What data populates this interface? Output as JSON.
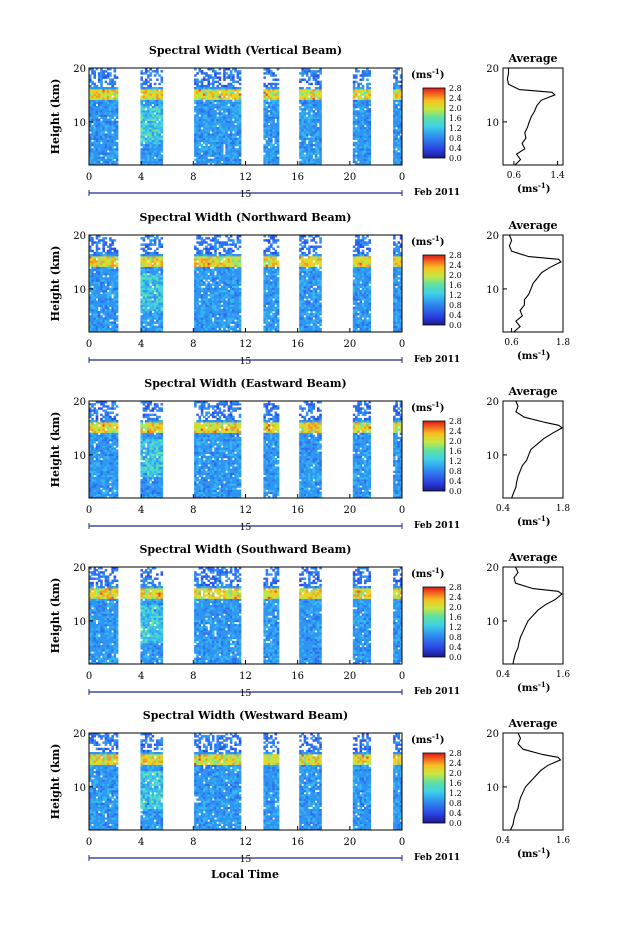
{
  "figure": {
    "xlabel": "Local Time",
    "ylabel": "Height (km)",
    "date_label": "Feb 2011",
    "day_label": "15",
    "unit_label": "(ms",
    "unit_exp": "-1",
    "avg_title": "Average",
    "colorbar_ticks": [
      "0.0",
      "0.4",
      "0.8",
      "1.2",
      "1.6",
      "2.0",
      "2.4",
      "2.8"
    ]
  },
  "chart_data": [
    {
      "type": "heatmap",
      "title": "Spectral Width (Vertical Beam)",
      "x_ticks": [
        "0",
        "4",
        "8",
        "12",
        "16",
        "20",
        "0"
      ],
      "y_ticks": [
        "20",
        "10"
      ],
      "xlim": [
        0,
        24
      ],
      "ylim": [
        2,
        20
      ],
      "colorbar_range": [
        0.0,
        2.8
      ],
      "data_gaps_hours": [
        [
          2.3,
          3.9
        ],
        [
          5.6,
          8.1
        ],
        [
          11.6,
          13.3
        ],
        [
          14.5,
          16.2
        ],
        [
          17.8,
          20.2
        ],
        [
          21.6,
          23.3
        ]
      ],
      "average_profile": {
        "title": "Average",
        "x_ticks": [
          "0.6",
          "1.4"
        ],
        "xlim": [
          0.4,
          1.5
        ],
        "y_ticks": [
          "20",
          "10"
        ],
        "ylim": [
          2,
          20
        ],
        "height_km": [
          2,
          3,
          4,
          5,
          6,
          7,
          8,
          9,
          10,
          11,
          12,
          13,
          14,
          15,
          15.5,
          16,
          17,
          18,
          19,
          20
        ],
        "value": [
          0.62,
          0.72,
          0.65,
          0.8,
          0.75,
          0.82,
          0.8,
          0.85,
          0.88,
          0.92,
          0.98,
          1.02,
          1.1,
          1.35,
          1.3,
          0.7,
          0.5,
          0.48,
          0.5,
          0.5
        ]
      }
    },
    {
      "type": "heatmap",
      "title": "Spectral Width (Northward Beam)",
      "x_ticks": [
        "0",
        "4",
        "8",
        "12",
        "16",
        "20",
        "0"
      ],
      "y_ticks": [
        "20",
        "10"
      ],
      "xlim": [
        0,
        24
      ],
      "ylim": [
        2,
        20
      ],
      "colorbar_range": [
        0.0,
        2.8
      ],
      "average_profile": {
        "title": "Average",
        "x_ticks": [
          "0.6",
          "1.8"
        ],
        "xlim": [
          0.4,
          1.8
        ],
        "y_ticks": [
          "20",
          "10"
        ],
        "ylim": [
          2,
          20
        ],
        "height_km": [
          2,
          3,
          4,
          5,
          6,
          7,
          8,
          9,
          10,
          11,
          12,
          13,
          14,
          15,
          15.5,
          16,
          17,
          18,
          19,
          20
        ],
        "value": [
          0.65,
          0.8,
          0.7,
          0.85,
          0.8,
          0.9,
          0.9,
          1.0,
          1.05,
          1.1,
          1.2,
          1.3,
          1.5,
          1.75,
          1.7,
          1.0,
          0.6,
          0.55,
          0.6,
          0.55
        ]
      }
    },
    {
      "type": "heatmap",
      "title": "Spectral Width (Eastward Beam)",
      "x_ticks": [
        "0",
        "4",
        "8",
        "12",
        "16",
        "20",
        "0"
      ],
      "y_ticks": [
        "20",
        "10"
      ],
      "xlim": [
        0,
        24
      ],
      "ylim": [
        2,
        20
      ],
      "colorbar_range": [
        0.0,
        2.8
      ],
      "average_profile": {
        "title": "Average",
        "x_ticks": [
          "0.4",
          "1.8"
        ],
        "xlim": [
          0.4,
          1.8
        ],
        "y_ticks": [
          "20",
          "10"
        ],
        "ylim": [
          2,
          20
        ],
        "height_km": [
          2,
          3,
          4,
          5,
          6,
          7,
          8,
          9,
          10,
          11,
          12,
          13,
          14,
          15,
          15.5,
          16,
          17,
          18,
          19,
          20
        ],
        "value": [
          0.6,
          0.65,
          0.7,
          0.72,
          0.75,
          0.8,
          0.85,
          0.95,
          1.0,
          1.05,
          1.2,
          1.35,
          1.55,
          1.78,
          1.7,
          1.4,
          0.9,
          0.7,
          0.75,
          0.7
        ]
      }
    },
    {
      "type": "heatmap",
      "title": "Spectral Width (Southward Beam)",
      "x_ticks": [
        "0",
        "4",
        "8",
        "12",
        "16",
        "20",
        "0"
      ],
      "y_ticks": [
        "20",
        "10"
      ],
      "xlim": [
        0,
        24
      ],
      "ylim": [
        2,
        20
      ],
      "colorbar_range": [
        0.0,
        2.8
      ],
      "average_profile": {
        "title": "Average",
        "x_ticks": [
          "0.4",
          "1.6"
        ],
        "xlim": [
          0.4,
          1.6
        ],
        "y_ticks": [
          "20",
          "10"
        ],
        "ylim": [
          2,
          20
        ],
        "height_km": [
          2,
          3,
          4,
          5,
          6,
          7,
          8,
          9,
          10,
          11,
          12,
          13,
          14,
          15,
          15.5,
          16,
          17,
          18,
          19,
          20
        ],
        "value": [
          0.6,
          0.62,
          0.65,
          0.7,
          0.72,
          0.75,
          0.8,
          0.85,
          0.9,
          1.0,
          1.1,
          1.25,
          1.45,
          1.58,
          1.5,
          1.0,
          0.65,
          0.62,
          0.7,
          0.65
        ]
      }
    },
    {
      "type": "heatmap",
      "title": "Spectral Width (Westward Beam)",
      "x_ticks": [
        "0",
        "4",
        "8",
        "12",
        "16",
        "20",
        "0"
      ],
      "y_ticks": [
        "20",
        "10"
      ],
      "xlim": [
        0,
        24
      ],
      "ylim": [
        2,
        20
      ],
      "colorbar_range": [
        0.0,
        2.8
      ],
      "average_profile": {
        "title": "Average",
        "x_ticks": [
          "0.4",
          "1.6"
        ],
        "xlim": [
          0.4,
          1.6
        ],
        "y_ticks": [
          "20",
          "10"
        ],
        "ylim": [
          2,
          20
        ],
        "height_km": [
          2,
          3,
          4,
          5,
          6,
          7,
          8,
          9,
          10,
          11,
          12,
          13,
          14,
          15,
          15.5,
          16,
          17,
          18,
          19,
          20
        ],
        "value": [
          0.55,
          0.6,
          0.62,
          0.65,
          0.7,
          0.72,
          0.75,
          0.8,
          0.85,
          0.95,
          1.05,
          1.15,
          1.3,
          1.55,
          1.5,
          1.2,
          0.8,
          0.7,
          0.75,
          0.7
        ]
      }
    }
  ]
}
